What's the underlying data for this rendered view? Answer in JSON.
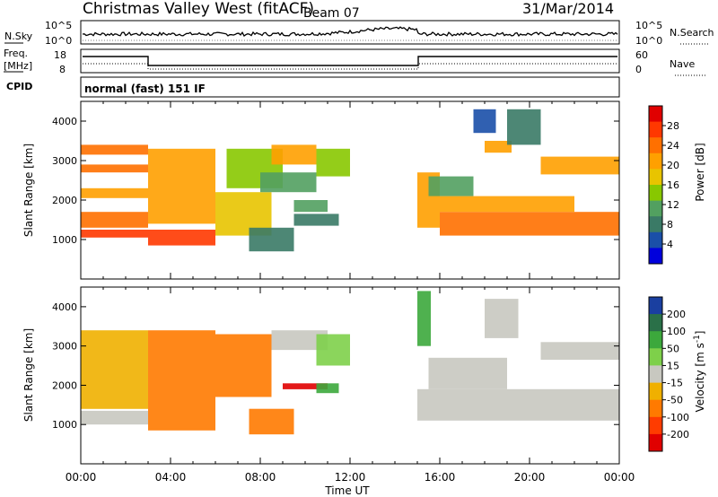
{
  "header": {
    "title": "Christmas Valley West (fitACF)",
    "beam": "Beam 07",
    "date": "31/Mar/2014"
  },
  "top_panel": {
    "nsky_label": "N.Sky",
    "nsky_ticks": [
      "10^5",
      "10^0"
    ],
    "nsearch_label": "N.Search",
    "nsearch_ticks": [
      "10^5",
      "10^0"
    ],
    "freq_label": "Freq.",
    "freq_unit": "[MHz]",
    "freq_ticks": [
      "18",
      "8"
    ],
    "nave_label": "Nave",
    "nave_ticks": [
      "60",
      "0"
    ],
    "cpid_label": "CPID",
    "cpid_value": "normal (fast) 151 IF"
  },
  "chart_data": [
    {
      "type": "heatmap",
      "title": "Power",
      "ylabel": "Slant Range [km]",
      "xlabel": "",
      "colorbar_label": "Power [dB]",
      "colorbar_ticks": [
        "28",
        "24",
        "20",
        "16",
        "12",
        "8",
        "4"
      ],
      "colorbar_colors": [
        "#e00000",
        "#ff3800",
        "#ff7000",
        "#ffa000",
        "#e8c400",
        "#88c800",
        "#52a060",
        "#3a7a66",
        "#1a4fa8",
        "#0000dc"
      ],
      "yticks": [
        "1000",
        "2000",
        "3000",
        "4000"
      ],
      "ylim": [
        0,
        4500
      ],
      "xlim": [
        0,
        24
      ],
      "bands": [
        {
          "x0": 0.0,
          "x1": 3.0,
          "r0": 1050,
          "r1": 1250,
          "level": 26
        },
        {
          "x0": 0.0,
          "x1": 3.0,
          "r0": 1300,
          "r1": 1700,
          "level": 24
        },
        {
          "x0": 0.0,
          "x1": 3.0,
          "r0": 2050,
          "r1": 2300,
          "level": 22
        },
        {
          "x0": 0.0,
          "x1": 3.0,
          "r0": 2700,
          "r1": 2900,
          "level": 24
        },
        {
          "x0": 0.0,
          "x1": 3.0,
          "r0": 3150,
          "r1": 3400,
          "level": 24
        },
        {
          "x0": 3.0,
          "x1": 6.0,
          "r0": 850,
          "r1": 1250,
          "level": 26
        },
        {
          "x0": 3.0,
          "x1": 6.0,
          "r0": 1400,
          "r1": 3300,
          "level": 22
        },
        {
          "x0": 6.0,
          "x1": 8.5,
          "r0": 1100,
          "r1": 2200,
          "level": 18
        },
        {
          "x0": 6.5,
          "x1": 9.0,
          "r0": 2300,
          "r1": 3300,
          "level": 16
        },
        {
          "x0": 8.5,
          "x1": 10.5,
          "r0": 2900,
          "r1": 3400,
          "level": 22
        },
        {
          "x0": 8.0,
          "x1": 10.5,
          "r0": 2200,
          "r1": 2700,
          "level": 12
        },
        {
          "x0": 7.5,
          "x1": 9.5,
          "r0": 700,
          "r1": 1300,
          "level": 8
        },
        {
          "x0": 9.5,
          "x1": 11.0,
          "r0": 1700,
          "r1": 2000,
          "level": 12
        },
        {
          "x0": 9.5,
          "x1": 11.5,
          "r0": 1350,
          "r1": 1650,
          "level": 8
        },
        {
          "x0": 10.5,
          "x1": 12.0,
          "r0": 2600,
          "r1": 3300,
          "level": 14
        },
        {
          "x0": 15.0,
          "x1": 16.0,
          "r0": 1300,
          "r1": 2700,
          "level": 20
        },
        {
          "x0": 16.0,
          "x1": 24.0,
          "r0": 1100,
          "r1": 1700,
          "level": 24
        },
        {
          "x0": 16.0,
          "x1": 22.0,
          "r0": 1700,
          "r1": 2100,
          "level": 20
        },
        {
          "x0": 15.5,
          "x1": 17.5,
          "r0": 2100,
          "r1": 2600,
          "level": 12
        },
        {
          "x0": 18.0,
          "x1": 19.2,
          "r0": 3200,
          "r1": 3500,
          "level": 20
        },
        {
          "x0": 20.5,
          "x1": 24.0,
          "r0": 2650,
          "r1": 3100,
          "level": 20
        },
        {
          "x0": 19.0,
          "x1": 20.5,
          "r0": 3400,
          "r1": 4300,
          "level": 8
        },
        {
          "x0": 17.5,
          "x1": 18.5,
          "r0": 3700,
          "r1": 4300,
          "level": 6
        }
      ]
    },
    {
      "type": "heatmap",
      "title": "Velocity",
      "ylabel": "Slant Range [km]",
      "xlabel": "Time UT",
      "colorbar_label": "Velocity [m s^-1]",
      "colorbar_ticks": [
        "200",
        "100",
        "50",
        "15",
        "-15",
        "-50",
        "-100",
        "-200"
      ],
      "colorbar_colors": [
        "#1a3fa0",
        "#2a7048",
        "#3ca83c",
        "#7ed04a",
        "#c8c8c0",
        "#f0b000",
        "#ff7a00",
        "#ff3c00",
        "#e00000"
      ],
      "yticks": [
        "1000",
        "2000",
        "3000",
        "4000"
      ],
      "xticks": [
        "00:00",
        "04:00",
        "08:00",
        "12:00",
        "16:00",
        "20:00",
        "00:00"
      ],
      "ylim": [
        0,
        4500
      ],
      "xlim": [
        0,
        24
      ],
      "bands": [
        {
          "x0": 0.0,
          "x1": 3.0,
          "r0": 1000,
          "r1": 1350,
          "level": 0
        },
        {
          "x0": 0.0,
          "x1": 3.0,
          "r0": 1400,
          "r1": 3400,
          "level": -40
        },
        {
          "x0": 3.0,
          "x1": 6.0,
          "r0": 850,
          "r1": 3400,
          "level": -60
        },
        {
          "x0": 6.0,
          "x1": 8.5,
          "r0": 1700,
          "r1": 3300,
          "level": -55
        },
        {
          "x0": 8.5,
          "x1": 11.0,
          "r0": 2900,
          "r1": 3400,
          "level": 0
        },
        {
          "x0": 9.0,
          "x1": 11.0,
          "r0": 1900,
          "r1": 2050,
          "level": -220
        },
        {
          "x0": 10.5,
          "x1": 11.5,
          "r0": 1800,
          "r1": 2050,
          "level": 60
        },
        {
          "x0": 7.5,
          "x1": 9.5,
          "r0": 750,
          "r1": 1400,
          "level": -70
        },
        {
          "x0": 10.5,
          "x1": 12.0,
          "r0": 2500,
          "r1": 3300,
          "level": 40
        },
        {
          "x0": 15.0,
          "x1": 24.0,
          "r0": 1100,
          "r1": 1900,
          "level": 0
        },
        {
          "x0": 15.5,
          "x1": 19.0,
          "r0": 1900,
          "r1": 2700,
          "level": 0
        },
        {
          "x0": 20.5,
          "x1": 24.0,
          "r0": 2650,
          "r1": 3100,
          "level": 0
        },
        {
          "x0": 18.0,
          "x1": 19.5,
          "r0": 3200,
          "r1": 4200,
          "level": 0
        },
        {
          "x0": 15.0,
          "x1": 15.6,
          "r0": 3000,
          "r1": 4400,
          "level": 60
        }
      ]
    }
  ]
}
